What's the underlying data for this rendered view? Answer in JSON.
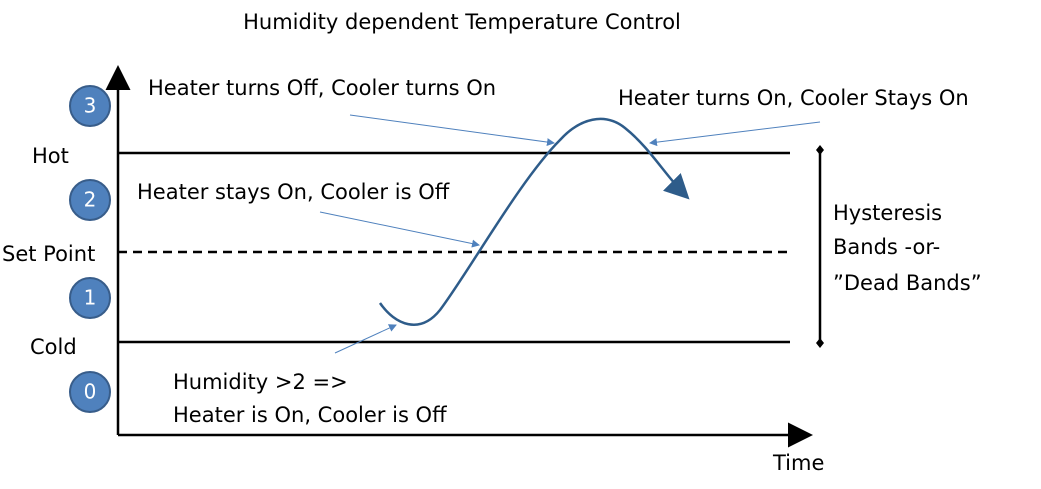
{
  "title": "Humidity dependent Temperature Control",
  "levels": [
    {
      "label": "Hot",
      "marker": "3"
    },
    {
      "label": "Set Point",
      "marker": "2"
    },
    {
      "label": "Cold",
      "marker": "1"
    },
    {
      "marker": "0"
    }
  ],
  "annotations": {
    "turns_off": "Heater turns Off, Cooler turns On",
    "turns_on": "Heater turns On, Cooler Stays On",
    "stays_on": "Heater stays On, Cooler is Off",
    "start": [
      "Humidity >2 =>",
      "Heater is On, Cooler is Off"
    ]
  },
  "bands_label": [
    "Hysteresis",
    "Bands -or-",
    "”Dead Bands”"
  ],
  "x_axis_label": "Time"
}
